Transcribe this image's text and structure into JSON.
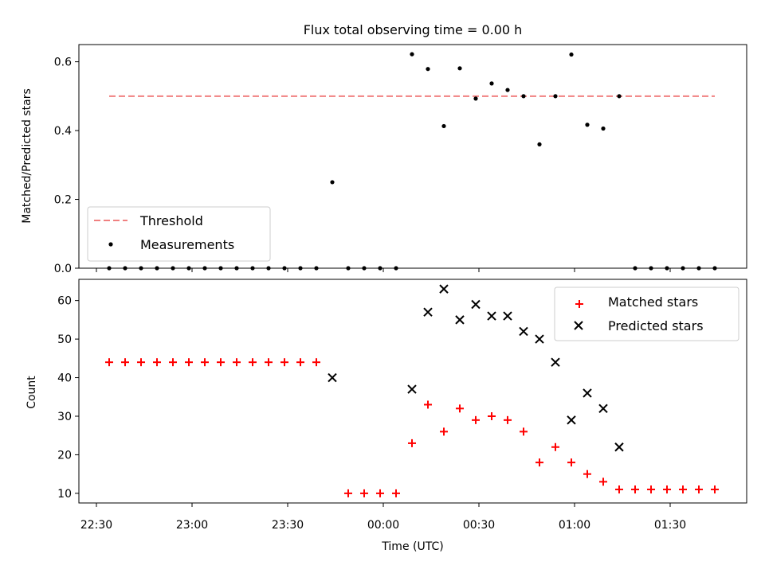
{
  "chart_data": [
    {
      "type": "scatter",
      "title": "Flux total observing time = 0.00 h",
      "xlabel": "",
      "ylabel": "Matched/Predicted stars",
      "x_ticks": [
        "22:30",
        "23:00",
        "23:30",
        "00:00",
        "00:30",
        "01:00",
        "01:30"
      ],
      "y_ticks": [
        "0.0",
        "0.2",
        "0.4",
        "0.6"
      ],
      "ylim": [
        0.0,
        0.65
      ],
      "legend_position": "lower-left",
      "grid": false,
      "series": [
        {
          "name": "Threshold",
          "style": "dashed-line",
          "color": "#f08080",
          "x": [
            "22:34",
            "01:44"
          ],
          "y": [
            0.5,
            0.5
          ]
        },
        {
          "name": "Measurements",
          "style": "dot",
          "color": "#000000",
          "x": [
            "22:34",
            "22:39",
            "22:44",
            "22:49",
            "22:54",
            "22:59",
            "23:04",
            "23:09",
            "23:14",
            "23:19",
            "23:24",
            "23:29",
            "23:34",
            "23:39",
            "23:44",
            "23:49",
            "23:54",
            "23:59",
            "00:04",
            "00:09",
            "00:14",
            "00:19",
            "00:24",
            "00:29",
            "00:34",
            "00:39",
            "00:44",
            "00:49",
            "00:54",
            "00:59",
            "01:04",
            "01:09",
            "01:14",
            "01:19",
            "01:24",
            "01:29",
            "01:34",
            "01:39",
            "01:44"
          ],
          "y": [
            0,
            0,
            0,
            0,
            0,
            0,
            0,
            0,
            0,
            0,
            0,
            0,
            0,
            0,
            0.25,
            0,
            0,
            0,
            0,
            0.622,
            0.579,
            0.413,
            0.581,
            0.493,
            0.537,
            0.518,
            0.5,
            0.36,
            0.5,
            0.621,
            0.417,
            0.406,
            0.5,
            0,
            0,
            0,
            0,
            0,
            0
          ]
        }
      ]
    },
    {
      "type": "scatter",
      "title": "",
      "xlabel": "Time (UTC)",
      "ylabel": "Count",
      "x_ticks": [
        "22:30",
        "23:00",
        "23:30",
        "00:00",
        "00:30",
        "01:00",
        "01:30"
      ],
      "y_ticks": [
        "10",
        "20",
        "30",
        "40",
        "50",
        "60"
      ],
      "ylim": [
        7.5,
        65.5
      ],
      "legend_position": "upper-right",
      "grid": false,
      "series": [
        {
          "name": "Matched stars",
          "marker": "+",
          "color": "#ff0000",
          "x": [
            "22:34",
            "22:39",
            "22:44",
            "22:49",
            "22:54",
            "22:59",
            "23:04",
            "23:09",
            "23:14",
            "23:19",
            "23:24",
            "23:29",
            "23:34",
            "23:39",
            "23:49",
            "23:54",
            "23:59",
            "00:04",
            "00:09",
            "00:14",
            "00:19",
            "00:24",
            "00:29",
            "00:34",
            "00:39",
            "00:44",
            "00:49",
            "00:54",
            "00:59",
            "01:04",
            "01:09",
            "01:14",
            "01:19",
            "01:24",
            "01:29",
            "01:34",
            "01:39",
            "01:44"
          ],
          "y": [
            44,
            44,
            44,
            44,
            44,
            44,
            44,
            44,
            44,
            44,
            44,
            44,
            44,
            44,
            10,
            10,
            10,
            10,
            23,
            33,
            26,
            32,
            29,
            30,
            29,
            26,
            18,
            22,
            18,
            15,
            13,
            11,
            11,
            11,
            11,
            11,
            11,
            11
          ]
        },
        {
          "name": "Predicted stars",
          "marker": "x",
          "color": "#000000",
          "x": [
            "23:44",
            "00:09",
            "00:14",
            "00:19",
            "00:24",
            "00:29",
            "00:34",
            "00:39",
            "00:44",
            "00:49",
            "00:54",
            "00:59",
            "01:04",
            "01:09",
            "01:14"
          ],
          "y": [
            40,
            37,
            57,
            63,
            55,
            59,
            56,
            56,
            52,
            50,
            44,
            29,
            36,
            32,
            22
          ]
        }
      ]
    }
  ]
}
